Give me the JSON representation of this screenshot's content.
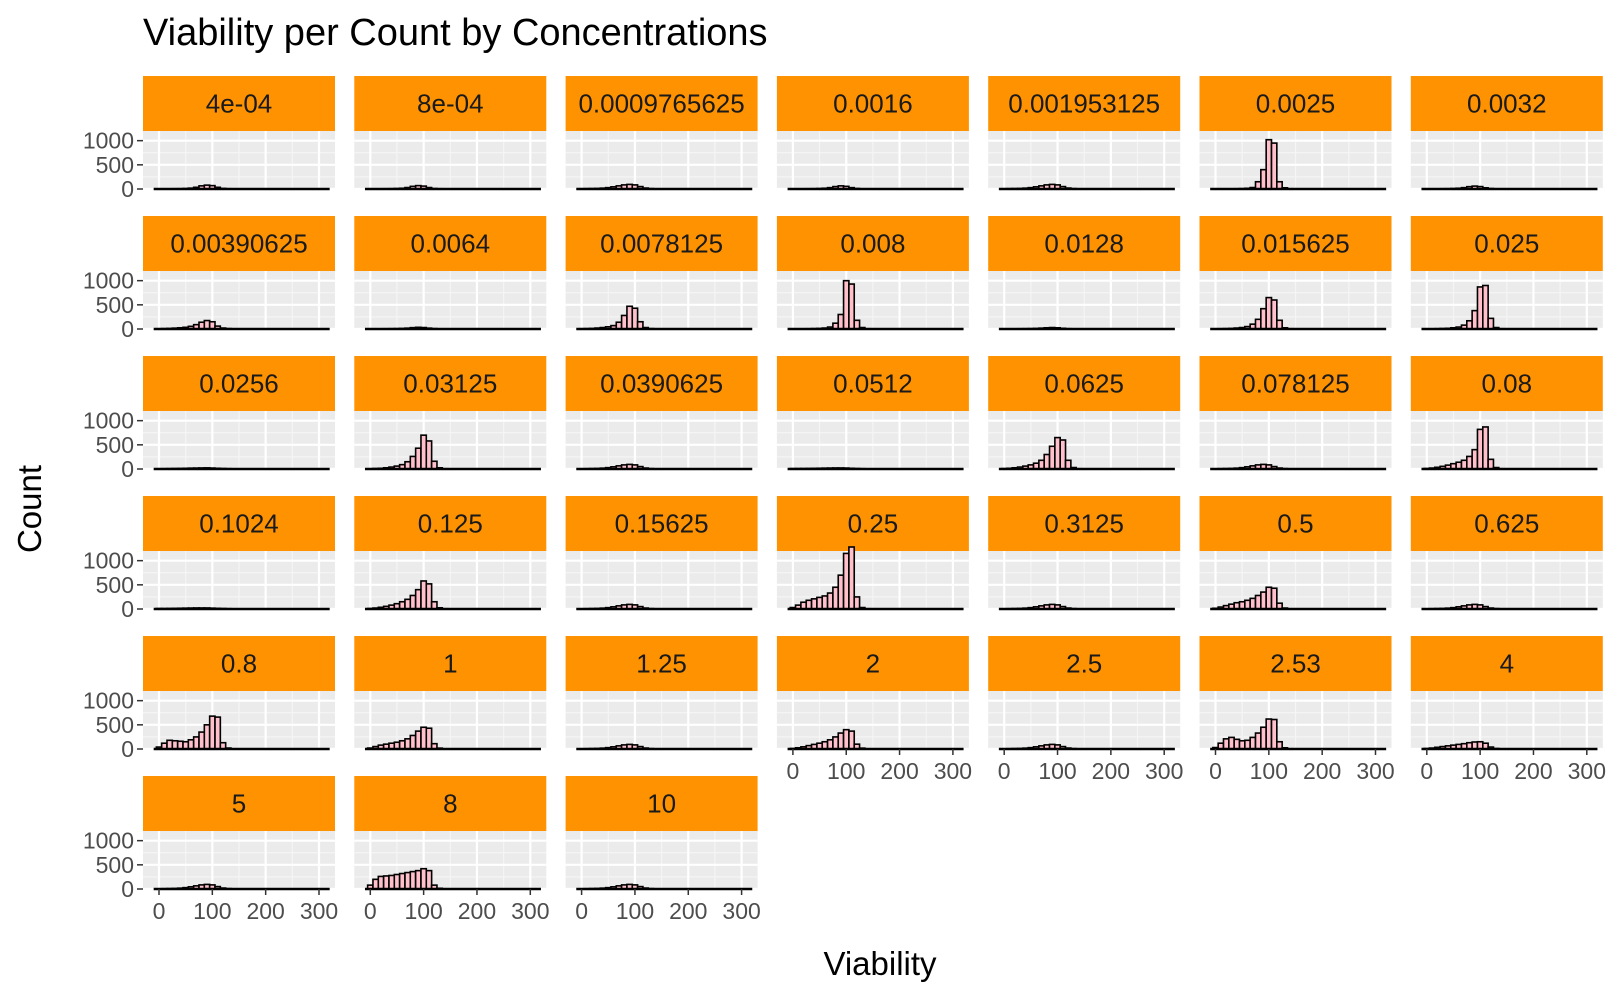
{
  "chart_data": {
    "type": "bar",
    "title": "Viability per Count by Concentrations",
    "xlabel": "Viability",
    "ylabel": "Count",
    "xlim": [
      -30,
      330
    ],
    "ylim": [
      0,
      1200
    ],
    "x_ticks": [
      "0",
      "100",
      "200",
      "300"
    ],
    "y_ticks": [
      "0",
      "500",
      "1000"
    ],
    "strip_color": "#FF9200",
    "panel_bg": "#EBEBEB",
    "bar_fill": "#FFC0CB",
    "bar_stroke": "#000000",
    "bin_width": 10,
    "bin_centers": [
      0,
      10,
      20,
      30,
      40,
      50,
      60,
      70,
      80,
      90,
      100,
      110,
      120,
      130,
      140
    ],
    "facets": [
      {
        "label": "4e-04",
        "values": [
          2,
          3,
          4,
          5,
          6,
          10,
          18,
          35,
          65,
          80,
          70,
          35,
          12,
          5,
          3
        ]
      },
      {
        "label": "8e-04",
        "values": [
          2,
          3,
          4,
          5,
          6,
          10,
          16,
          30,
          55,
          70,
          60,
          30,
          10,
          5,
          2
        ]
      },
      {
        "label": "0.0009765625",
        "values": [
          5,
          7,
          9,
          12,
          18,
          28,
          45,
          65,
          85,
          95,
          85,
          50,
          20,
          8,
          4
        ]
      },
      {
        "label": "0.0016",
        "values": [
          2,
          3,
          4,
          5,
          6,
          10,
          16,
          28,
          50,
          65,
          55,
          28,
          10,
          4,
          2
        ]
      },
      {
        "label": "0.001953125",
        "values": [
          5,
          7,
          9,
          12,
          18,
          28,
          45,
          65,
          85,
          95,
          85,
          50,
          20,
          8,
          4
        ]
      },
      {
        "label": "0.0025",
        "values": [
          0,
          0,
          2,
          3,
          5,
          8,
          15,
          30,
          150,
          400,
          1020,
          950,
          150,
          25,
          5
        ]
      },
      {
        "label": "0.0032",
        "values": [
          2,
          3,
          4,
          5,
          6,
          10,
          16,
          28,
          48,
          60,
          50,
          25,
          10,
          4,
          2
        ]
      },
      {
        "label": "0.00390625",
        "values": [
          5,
          8,
          12,
          18,
          25,
          35,
          55,
          90,
          140,
          175,
          150,
          60,
          20,
          8,
          3
        ]
      },
      {
        "label": "0.0064",
        "values": [
          2,
          3,
          4,
          5,
          6,
          8,
          12,
          18,
          28,
          35,
          30,
          18,
          8,
          3,
          1
        ]
      },
      {
        "label": "0.0078125",
        "values": [
          5,
          8,
          12,
          20,
          30,
          45,
          70,
          140,
          280,
          470,
          430,
          150,
          30,
          8,
          3
        ]
      },
      {
        "label": "0.008",
        "values": [
          0,
          2,
          3,
          5,
          8,
          12,
          20,
          40,
          120,
          300,
          1000,
          930,
          180,
          30,
          5
        ]
      },
      {
        "label": "0.0128",
        "values": [
          2,
          3,
          4,
          5,
          6,
          8,
          12,
          18,
          25,
          30,
          25,
          15,
          6,
          3,
          1
        ]
      },
      {
        "label": "0.015625",
        "values": [
          3,
          5,
          8,
          12,
          20,
          30,
          50,
          100,
          200,
          420,
          650,
          600,
          180,
          25,
          5
        ]
      },
      {
        "label": "0.025",
        "values": [
          2,
          4,
          6,
          10,
          15,
          25,
          40,
          80,
          170,
          380,
          870,
          900,
          220,
          30,
          5
        ]
      },
      {
        "label": "0.0256",
        "values": [
          5,
          6,
          8,
          10,
          12,
          15,
          18,
          20,
          22,
          24,
          20,
          15,
          10,
          6,
          3
        ]
      },
      {
        "label": "0.03125",
        "values": [
          5,
          10,
          15,
          25,
          40,
          60,
          90,
          150,
          260,
          430,
          700,
          580,
          160,
          25,
          5
        ]
      },
      {
        "label": "0.0390625",
        "values": [
          4,
          6,
          9,
          12,
          18,
          28,
          45,
          65,
          85,
          95,
          85,
          50,
          20,
          8,
          4
        ]
      },
      {
        "label": "0.0512",
        "values": [
          8,
          9,
          10,
          12,
          14,
          16,
          18,
          20,
          22,
          22,
          20,
          15,
          10,
          6,
          3
        ]
      },
      {
        "label": "0.0625",
        "values": [
          8,
          15,
          25,
          40,
          60,
          85,
          120,
          180,
          300,
          470,
          650,
          600,
          180,
          30,
          5
        ]
      },
      {
        "label": "0.078125",
        "values": [
          4,
          6,
          9,
          12,
          18,
          28,
          45,
          65,
          85,
          95,
          85,
          50,
          20,
          8,
          4
        ]
      },
      {
        "label": "0.08",
        "values": [
          10,
          20,
          35,
          55,
          80,
          110,
          140,
          180,
          260,
          400,
          820,
          870,
          200,
          30,
          5
        ]
      },
      {
        "label": "0.1024",
        "values": [
          10,
          10,
          12,
          14,
          16,
          18,
          20,
          22,
          22,
          22,
          18,
          14,
          10,
          6,
          3
        ]
      },
      {
        "label": "0.125",
        "values": [
          10,
          20,
          35,
          55,
          80,
          110,
          150,
          200,
          280,
          400,
          580,
          520,
          150,
          25,
          5
        ]
      },
      {
        "label": "0.15625",
        "values": [
          4,
          6,
          9,
          12,
          18,
          28,
          45,
          65,
          85,
          95,
          85,
          50,
          20,
          8,
          4
        ]
      },
      {
        "label": "0.25",
        "values": [
          30,
          80,
          140,
          180,
          210,
          240,
          270,
          330,
          450,
          700,
          1150,
          1400,
          250,
          30,
          5
        ]
      },
      {
        "label": "0.3125",
        "values": [
          4,
          6,
          9,
          12,
          18,
          28,
          45,
          65,
          85,
          95,
          85,
          50,
          20,
          8,
          4
        ]
      },
      {
        "label": "0.5",
        "values": [
          15,
          40,
          70,
          100,
          130,
          150,
          180,
          220,
          280,
          350,
          450,
          430,
          120,
          20,
          4
        ]
      },
      {
        "label": "0.625",
        "values": [
          4,
          6,
          9,
          12,
          18,
          28,
          45,
          65,
          85,
          95,
          85,
          50,
          20,
          8,
          4
        ]
      },
      {
        "label": "0.8",
        "values": [
          40,
          120,
          180,
          170,
          160,
          150,
          190,
          250,
          350,
          500,
          680,
          660,
          130,
          20,
          4
        ]
      },
      {
        "label": "1",
        "values": [
          20,
          50,
          80,
          100,
          120,
          140,
          170,
          210,
          280,
          370,
          450,
          430,
          110,
          18,
          4
        ]
      },
      {
        "label": "1.25",
        "values": [
          4,
          6,
          9,
          12,
          18,
          28,
          45,
          65,
          85,
          95,
          85,
          50,
          20,
          8,
          4
        ]
      },
      {
        "label": "2",
        "values": [
          10,
          25,
          45,
          70,
          95,
          120,
          150,
          190,
          250,
          330,
          400,
          370,
          100,
          18,
          4
        ]
      },
      {
        "label": "2.5",
        "values": [
          4,
          6,
          9,
          12,
          18,
          28,
          45,
          65,
          85,
          95,
          85,
          50,
          20,
          8,
          4
        ]
      },
      {
        "label": "2.53",
        "values": [
          30,
          120,
          210,
          240,
          200,
          170,
          180,
          240,
          330,
          450,
          620,
          610,
          150,
          25,
          5
        ]
      },
      {
        "label": "4",
        "values": [
          10,
          20,
          35,
          50,
          65,
          80,
          95,
          110,
          130,
          145,
          150,
          120,
          40,
          10,
          3
        ]
      },
      {
        "label": "5",
        "values": [
          4,
          6,
          9,
          12,
          18,
          28,
          45,
          65,
          85,
          95,
          85,
          50,
          20,
          8,
          4
        ]
      },
      {
        "label": "8",
        "values": [
          80,
          200,
          260,
          270,
          280,
          300,
          320,
          340,
          360,
          380,
          420,
          380,
          80,
          15,
          3
        ]
      },
      {
        "label": "10",
        "values": [
          4,
          6,
          9,
          12,
          18,
          28,
          45,
          65,
          85,
          95,
          85,
          50,
          20,
          8,
          4
        ]
      }
    ]
  }
}
